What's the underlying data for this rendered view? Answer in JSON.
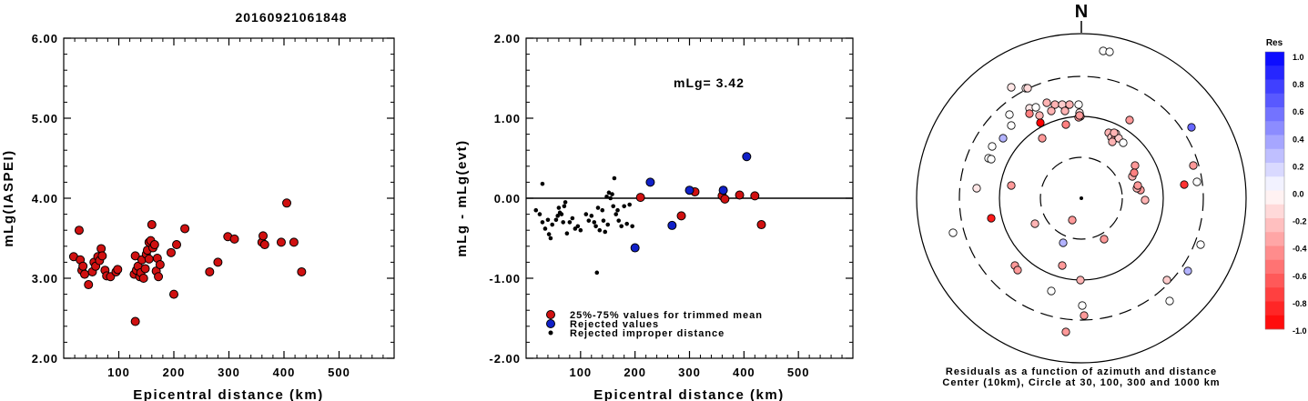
{
  "event_title": "20160921061848",
  "colors": {
    "accepted": "#d01010",
    "rejected": "#1020c8",
    "improper": "#000000"
  },
  "chart_data": [
    {
      "type": "scatter",
      "title": "",
      "xlabel": "Epicentral distance (km)",
      "ylabel": "mLg(IASPEI)",
      "xlim": [
        0,
        600
      ],
      "ylim": [
        2.0,
        6.0
      ],
      "xticks": [
        "100",
        "200",
        "300",
        "400",
        "500"
      ],
      "yticks": [
        "2.00",
        "3.00",
        "4.00",
        "5.00",
        "6.00"
      ],
      "grid": false,
      "series": [
        {
          "points": [
            [
              18,
              3.27
            ],
            [
              28,
              3.6
            ],
            [
              30,
              3.23
            ],
            [
              33,
              3.1
            ],
            [
              35,
              3.15
            ],
            [
              38,
              3.05
            ],
            [
              45,
              2.92
            ],
            [
              52,
              3.08
            ],
            [
              55,
              3.2
            ],
            [
              58,
              3.15
            ],
            [
              62,
              3.27
            ],
            [
              65,
              3.22
            ],
            [
              68,
              3.37
            ],
            [
              70,
              3.28
            ],
            [
              75,
              3.1
            ],
            [
              78,
              3.03
            ],
            [
              85,
              3.02
            ],
            [
              95,
              3.08
            ],
            [
              98,
              3.11
            ],
            [
              130,
              2.46
            ],
            [
              128,
              3.05
            ],
            [
              130,
              3.28
            ],
            [
              132,
              3.1
            ],
            [
              135,
              3.15
            ],
            [
              138,
              3.02
            ],
            [
              140,
              3.07
            ],
            [
              142,
              3.23
            ],
            [
              145,
              3.0
            ],
            [
              148,
              3.12
            ],
            [
              150,
              3.3
            ],
            [
              152,
              3.35
            ],
            [
              155,
              3.45
            ],
            [
              155,
              3.24
            ],
            [
              158,
              3.47
            ],
            [
              160,
              3.67
            ],
            [
              162,
              3.38
            ],
            [
              165,
              3.42
            ],
            [
              168,
              3.09
            ],
            [
              170,
              3.25
            ],
            [
              172,
              3.02
            ],
            [
              175,
              3.17
            ],
            [
              195,
              3.32
            ],
            [
              200,
              2.8
            ],
            [
              205,
              3.42
            ],
            [
              220,
              3.62
            ],
            [
              265,
              3.08
            ],
            [
              280,
              3.2
            ],
            [
              298,
              3.52
            ],
            [
              310,
              3.49
            ],
            [
              360,
              3.45
            ],
            [
              362,
              3.53
            ],
            [
              365,
              3.42
            ],
            [
              395,
              3.45
            ],
            [
              405,
              3.94
            ],
            [
              418,
              3.45
            ],
            [
              432,
              3.08
            ]
          ]
        }
      ]
    },
    {
      "type": "scatter",
      "title": "",
      "xlabel": "Epicentral distance (km)",
      "ylabel": "mLg - mLg(evt)",
      "annotation": "mLg= 3.42",
      "xlim": [
        0,
        600
      ],
      "ylim": [
        -2.0,
        2.0
      ],
      "xticks": [
        "100",
        "200",
        "300",
        "400",
        "500"
      ],
      "yticks": [
        "-2.00",
        "-1.00",
        "0.00",
        "1.00",
        "2.00"
      ],
      "grid": false,
      "legend_position": "bottom-left",
      "series": [
        {
          "name": "25%-75% values for trimmed mean",
          "points": [
            [
              210,
              0.01
            ],
            [
              285,
              -0.22
            ],
            [
              310,
              0.08
            ],
            [
              360,
              0.03
            ],
            [
              365,
              -0.01
            ],
            [
              392,
              0.04
            ],
            [
              420,
              0.03
            ],
            [
              432,
              -0.33
            ]
          ]
        },
        {
          "name": "Rejected values",
          "points": [
            [
              200,
              -0.62
            ],
            [
              228,
              0.2
            ],
            [
              268,
              -0.34
            ],
            [
              300,
              0.1
            ],
            [
              362,
              0.1
            ],
            [
              405,
              0.52
            ]
          ]
        },
        {
          "name": "Rejected improper distance",
          "points": [
            [
              18,
              -0.15
            ],
            [
              25,
              -0.2
            ],
            [
              30,
              0.18
            ],
            [
              30,
              -0.3
            ],
            [
              35,
              -0.38
            ],
            [
              40,
              -0.27
            ],
            [
              42,
              -0.45
            ],
            [
              45,
              -0.5
            ],
            [
              48,
              -0.33
            ],
            [
              55,
              -0.27
            ],
            [
              58,
              -0.22
            ],
            [
              60,
              -0.12
            ],
            [
              62,
              -0.18
            ],
            [
              65,
              -0.2
            ],
            [
              68,
              -0.3
            ],
            [
              70,
              -0.1
            ],
            [
              72,
              -0.05
            ],
            [
              75,
              -0.44
            ],
            [
              80,
              -0.3
            ],
            [
              85,
              -0.25
            ],
            [
              90,
              -0.38
            ],
            [
              95,
              -0.35
            ],
            [
              100,
              -0.4
            ],
            [
              110,
              -0.2
            ],
            [
              115,
              -0.28
            ],
            [
              120,
              -0.22
            ],
            [
              125,
              -0.3
            ],
            [
              128,
              -0.35
            ],
            [
              130,
              -0.93
            ],
            [
              132,
              -0.12
            ],
            [
              135,
              -0.4
            ],
            [
              140,
              -0.15
            ],
            [
              142,
              -0.28
            ],
            [
              145,
              -0.42
            ],
            [
              148,
              0.02
            ],
            [
              150,
              -0.33
            ],
            [
              152,
              0.07
            ],
            [
              155,
              0.0
            ],
            [
              158,
              0.05
            ],
            [
              160,
              -0.1
            ],
            [
              162,
              0.25
            ],
            [
              165,
              -0.2
            ],
            [
              168,
              -0.15
            ],
            [
              170,
              -0.28
            ],
            [
              175,
              -0.35
            ],
            [
              180,
              -0.1
            ],
            [
              185,
              -0.32
            ],
            [
              190,
              -0.08
            ],
            [
              195,
              -0.35
            ]
          ]
        }
      ]
    },
    {
      "type": "scatter",
      "subtype": "polar",
      "title": "",
      "north_label": "N",
      "caption_line1": "Residuals as a function of azimuth and distance",
      "caption_line2": "Center (10km), Circle at 30, 100, 300 and 1000 km",
      "rings_km": [
        30,
        100,
        300,
        1000
      ],
      "colorbar": {
        "title": "Res",
        "range": [
          -1.0,
          1.0
        ],
        "ticks": [
          "1.0",
          "0.8",
          "0.6",
          "0.4",
          "0.2",
          "0.0",
          "-0.2",
          "-0.4",
          "-0.6",
          "-0.8",
          "-1.0"
        ]
      },
      "stations": [
        {
          "x": -77,
          "y": 122,
          "res": -0.1
        },
        {
          "x": -61,
          "y": 121,
          "res": -0.05
        },
        {
          "x": -57,
          "y": 99,
          "res": -0.1
        },
        {
          "x": -50,
          "y": 100,
          "res": 0.0
        },
        {
          "x": -57,
          "y": 93,
          "res": -0.5
        },
        {
          "x": -46,
          "y": 91,
          "res": -0.3
        },
        {
          "x": -38,
          "y": 105,
          "res": -0.3
        },
        {
          "x": -29,
          "y": 103,
          "res": -0.3
        },
        {
          "x": -21,
          "y": 103,
          "res": -0.2
        },
        {
          "x": -13,
          "y": 103,
          "res": -0.3
        },
        {
          "x": -3,
          "y": 103,
          "res": 0.0
        },
        {
          "x": -18,
          "y": 96,
          "res": -0.3
        },
        {
          "x": -33,
          "y": 96,
          "res": -0.3
        },
        {
          "x": -2,
          "y": 94,
          "res": -0.1
        },
        {
          "x": -45,
          "y": 83,
          "res": -1.0
        },
        {
          "x": -79,
          "y": 92,
          "res": 0.0
        },
        {
          "x": -59,
          "y": 121,
          "res": -0.15
        },
        {
          "x": -86,
          "y": 66,
          "res": 0.3
        },
        {
          "x": -98,
          "y": 57,
          "res": 0.0
        },
        {
          "x": -77,
          "y": 80,
          "res": 0.0
        },
        {
          "x": -43,
          "y": 66,
          "res": -0.4
        },
        {
          "x": -17,
          "y": 81,
          "res": -0.5
        },
        {
          "x": -1,
          "y": 90,
          "res": -0.4
        },
        {
          "x": -102,
          "y": 44,
          "res": 0.0
        },
        {
          "x": -99,
          "y": 43,
          "res": 0.0
        },
        {
          "x": -115,
          "y": 11,
          "res": -0.1
        },
        {
          "x": -77,
          "y": 14,
          "res": -0.4
        },
        {
          "x": -99,
          "y": -22,
          "res": -0.9
        },
        {
          "x": -51,
          "y": -28,
          "res": -0.3
        },
        {
          "x": -20,
          "y": -49,
          "res": 0.3
        },
        {
          "x": -141,
          "y": -38,
          "res": 0.0
        },
        {
          "x": -73,
          "y": -74,
          "res": -0.4
        },
        {
          "x": -70,
          "y": -79,
          "res": -0.4
        },
        {
          "x": -21,
          "y": -74,
          "res": -0.4
        },
        {
          "x": -33,
          "y": -102,
          "res": 0.0
        },
        {
          "x": 1,
          "y": -118,
          "res": 0.0
        },
        {
          "x": 3,
          "y": -129,
          "res": -0.4
        },
        {
          "x": -17,
          "y": -147,
          "res": -0.4
        },
        {
          "x": -1,
          "y": -90,
          "res": -0.3
        },
        {
          "x": -10,
          "y": -24,
          "res": -0.4
        },
        {
          "x": 25,
          "y": -45,
          "res": -0.4
        },
        {
          "x": -3,
          "y": 89,
          "res": -0.4
        },
        {
          "x": -2,
          "y": 91,
          "res": -0.4
        },
        {
          "x": 30,
          "y": 72,
          "res": -0.3
        },
        {
          "x": 33,
          "y": 67,
          "res": -0.2
        },
        {
          "x": 37,
          "y": 66,
          "res": -0.4
        },
        {
          "x": 38,
          "y": 71,
          "res": -0.2
        },
        {
          "x": 41,
          "y": 66,
          "res": -0.2
        },
        {
          "x": 34,
          "y": 62,
          "res": -0.3
        },
        {
          "x": 46,
          "y": 61,
          "res": 0.0
        },
        {
          "x": 36,
          "y": 72,
          "res": -0.3
        },
        {
          "x": 53,
          "y": 86,
          "res": -0.4
        },
        {
          "x": 56,
          "y": 24,
          "res": -0.3
        },
        {
          "x": 59,
          "y": 36,
          "res": -0.4
        },
        {
          "x": 58,
          "y": 28,
          "res": -0.5
        },
        {
          "x": 65,
          "y": 9,
          "res": -0.4
        },
        {
          "x": 61,
          "y": 11,
          "res": -0.3
        },
        {
          "x": 62,
          "y": 14,
          "res": -0.4
        },
        {
          "x": 70,
          "y": -2,
          "res": -0.3
        },
        {
          "x": 113,
          "y": 15,
          "res": -0.8
        },
        {
          "x": 123,
          "y": 36,
          "res": -0.4
        },
        {
          "x": 127,
          "y": 18,
          "res": 0.0
        },
        {
          "x": 121,
          "y": 78,
          "res": 0.6
        },
        {
          "x": 117,
          "y": -80,
          "res": 0.3
        },
        {
          "x": 94,
          "y": -90,
          "res": -0.2
        },
        {
          "x": 131,
          "y": -51,
          "res": 0.0
        },
        {
          "x": 97,
          "y": -113,
          "res": 0.0
        },
        {
          "x": 24,
          "y": 162,
          "res": 0.0
        },
        {
          "x": 31,
          "y": 161,
          "res": 0.0
        }
      ]
    }
  ]
}
